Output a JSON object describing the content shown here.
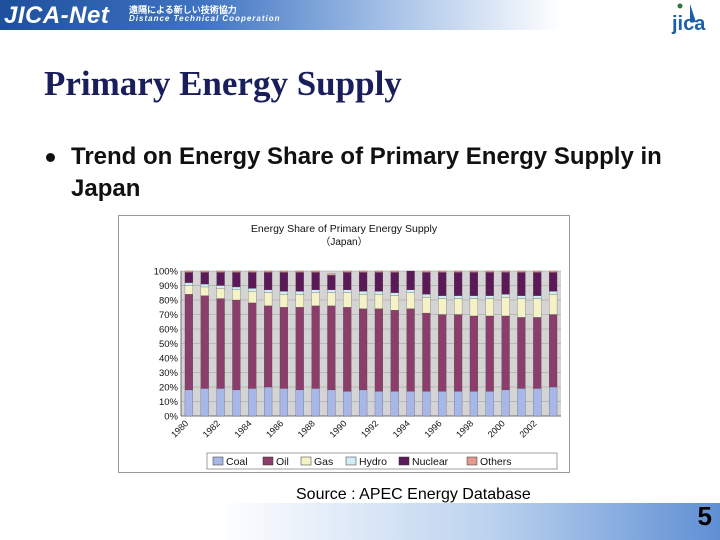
{
  "header": {
    "logo_text": "JICA-Net",
    "logo_jp": "遠隔による新しい技術協力",
    "logo_en": "Distance Technical Cooperation",
    "org_mark": "JICA"
  },
  "slide": {
    "title": "Primary Energy Supply",
    "bullet": "Trend on Energy Share of Primary Energy Supply in Japan",
    "source": "Source : APEC Energy Database",
    "page_number": "5"
  },
  "chart_data": {
    "type": "bar",
    "stacked": true,
    "title": "Energy Share of Primary Energy Supply",
    "subtitle": "（Japan）",
    "x": [
      1980,
      1981,
      1982,
      1983,
      1984,
      1985,
      1986,
      1987,
      1988,
      1989,
      1990,
      1991,
      1992,
      1993,
      1994,
      1995,
      1996,
      1997,
      1998,
      1999,
      2000,
      2001,
      2002,
      2003
    ],
    "x_tick_labels": [
      "1980",
      "1982",
      "1984",
      "1986",
      "1988",
      "1990",
      "1992",
      "1994",
      "1996",
      "1998",
      "2000",
      "2002"
    ],
    "y_tick_labels": [
      "0%",
      "10%",
      "20%",
      "30%",
      "40%",
      "50%",
      "60%",
      "70%",
      "80%",
      "90%",
      "100%"
    ],
    "ylim": [
      0,
      100
    ],
    "legend_position": "bottom",
    "series": [
      {
        "name": "Coal",
        "color": "#a8b7e8",
        "values": [
          18,
          19,
          19,
          18,
          19,
          20,
          19,
          18,
          19,
          18,
          17,
          18,
          17,
          17,
          17,
          17,
          17,
          17,
          17,
          17,
          18,
          19,
          19,
          20
        ]
      },
      {
        "name": "Oil",
        "color": "#8b3d6b",
        "values": [
          66,
          64,
          62,
          62,
          59,
          56,
          56,
          57,
          57,
          58,
          58,
          56,
          57,
          56,
          57,
          54,
          53,
          53,
          52,
          52,
          51,
          49,
          49,
          50
        ]
      },
      {
        "name": "Gas",
        "color": "#f5f2c8",
        "values": [
          6,
          6,
          7,
          7,
          8,
          9,
          9,
          9,
          9,
          9,
          10,
          10,
          10,
          10,
          11,
          11,
          11,
          11,
          12,
          12,
          13,
          13,
          13,
          14
        ]
      },
      {
        "name": "Hydro",
        "color": "#cfeef6",
        "values": [
          2,
          2,
          2,
          2,
          2,
          2,
          2,
          2,
          2,
          2,
          2,
          2,
          2,
          2,
          2,
          2,
          2,
          2,
          2,
          2,
          2,
          2,
          2,
          2
        ]
      },
      {
        "name": "Nuclear",
        "color": "#5b1a57",
        "values": [
          7,
          8,
          9,
          10,
          11,
          12,
          13,
          13,
          12,
          10,
          12,
          13,
          13,
          14,
          13,
          15,
          16,
          16,
          16,
          16,
          15,
          16,
          16,
          13
        ]
      },
      {
        "name": "Others",
        "color": "#e39a8c",
        "values": [
          1,
          1,
          1,
          1,
          1,
          1,
          1,
          1,
          1,
          1,
          1,
          1,
          1,
          1,
          0,
          1,
          1,
          1,
          1,
          1,
          1,
          1,
          1,
          1
        ]
      }
    ],
    "plot_background": "#d4d4d4",
    "grid": true
  }
}
